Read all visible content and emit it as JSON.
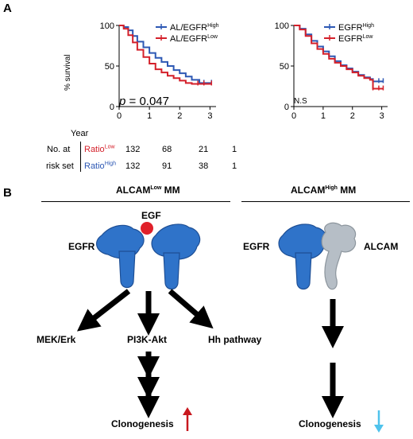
{
  "panelA": {
    "letter": "A",
    "year_label": "Year",
    "number_at_label": "No. at",
    "risk_set_label": "risk set",
    "rows": [
      {
        "label": "Ratio",
        "sup": "Low",
        "color": "#d4202a",
        "values": [
          "132",
          "68",
          "21",
          "1"
        ]
      },
      {
        "label": "Ratio",
        "sup": "High",
        "color": "#2d58b4",
        "values": [
          "132",
          "91",
          "38",
          "1"
        ]
      }
    ]
  },
  "chart_data": [
    {
      "type": "line",
      "ylabel": "% survival",
      "xlabel": "Year",
      "xlim": [
        0,
        3.2
      ],
      "ylim": [
        0,
        100
      ],
      "xticks": [
        0,
        1,
        2,
        3
      ],
      "yticks": [
        0,
        50,
        100
      ],
      "annotation_prefix": "p",
      "annotation_value": "0.047",
      "series": [
        {
          "name": "AL/EGFR",
          "sup": "High",
          "color": "#2d58b4",
          "x": [
            0,
            0.15,
            0.3,
            0.45,
            0.6,
            0.8,
            1.0,
            1.2,
            1.4,
            1.6,
            1.8,
            2.0,
            2.2,
            2.4,
            2.6,
            2.65,
            2.8,
            3.05
          ],
          "y": [
            100,
            98,
            94,
            87,
            80,
            73,
            66,
            60,
            55,
            50,
            45,
            41,
            37,
            33,
            33,
            29,
            29,
            29
          ]
        },
        {
          "name": "AL/EGFR",
          "sup": "Low",
          "color": "#d4202a",
          "x": [
            0,
            0.15,
            0.3,
            0.45,
            0.6,
            0.8,
            1.0,
            1.2,
            1.4,
            1.6,
            1.8,
            2.0,
            2.2,
            2.4,
            2.6,
            2.8,
            3.05
          ],
          "y": [
            100,
            96,
            88,
            79,
            70,
            61,
            53,
            46,
            42,
            38,
            35,
            32,
            29,
            28,
            28,
            28,
            28
          ]
        }
      ]
    },
    {
      "type": "line",
      "xlabel": "",
      "ylabel": "",
      "xlim": [
        0,
        3.2
      ],
      "ylim": [
        0,
        100
      ],
      "xticks": [
        0,
        1,
        2,
        3
      ],
      "yticks": [
        0,
        50,
        100
      ],
      "annotation_text": "N.S",
      "series": [
        {
          "name": "EGFR",
          "sup": "High",
          "color": "#2d58b4",
          "x": [
            0,
            0.2,
            0.4,
            0.6,
            0.8,
            1.0,
            1.2,
            1.4,
            1.6,
            1.8,
            2.0,
            2.2,
            2.4,
            2.6,
            2.7,
            2.9,
            3.05
          ],
          "y": [
            100,
            96,
            89,
            81,
            74,
            68,
            62,
            56,
            51,
            47,
            43,
            39,
            36,
            34,
            31,
            31,
            31
          ]
        },
        {
          "name": "EGFR",
          "sup": "Low",
          "color": "#d4202a",
          "x": [
            0,
            0.2,
            0.4,
            0.6,
            0.8,
            1.0,
            1.2,
            1.4,
            1.6,
            1.8,
            2.0,
            2.2,
            2.4,
            2.6,
            2.7,
            2.9,
            3.05
          ],
          "y": [
            100,
            95,
            87,
            78,
            71,
            65,
            59,
            54,
            50,
            46,
            42,
            38,
            35,
            33,
            22,
            22,
            22
          ]
        }
      ]
    }
  ],
  "panelB": {
    "letter": "B",
    "left_header": {
      "pre": "ALCAM",
      "sup": "Low",
      "post": " MM"
    },
    "right_header": {
      "pre": "ALCAM",
      "sup": "High",
      "post": " MM"
    },
    "egf_label": "EGF",
    "egfr_left": "EGFR",
    "egfr_right": "EGFR",
    "alcam_label": "ALCAM",
    "pathway_mek": "MEK/Erk",
    "pathway_pi3k": "PI3K-Akt",
    "pathway_hh": "Hh pathway",
    "outcome_left": "Clonogenesis",
    "outcome_right": "Clonogenesis",
    "colors": {
      "receptor": "#2f73c9",
      "alcam": "#b6bec6",
      "egf": "#e0202a",
      "up_arrow": "#c8181e",
      "down_arrow": "#4fc3ec"
    }
  }
}
